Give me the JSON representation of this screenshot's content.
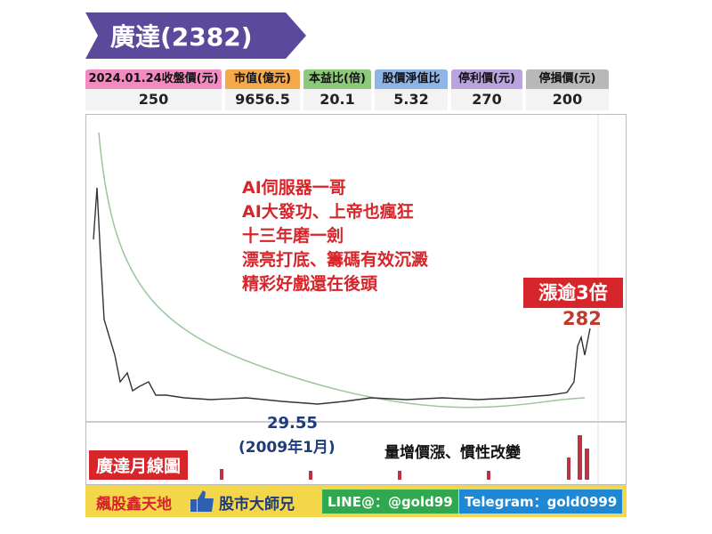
{
  "header": {
    "title": "廣達(2382)"
  },
  "stats": [
    {
      "label": "2024.01.24收盤價(元)",
      "value": "250"
    },
    {
      "label": "市值(億元)",
      "value": "9656.5"
    },
    {
      "label": "本益比(倍)",
      "value": "20.1"
    },
    {
      "label": "股價淨值比",
      "value": "5.32"
    },
    {
      "label": "停利價(元)",
      "value": "270"
    },
    {
      "label": "停損價(元)",
      "value": "200"
    }
  ],
  "annotations": {
    "headline": [
      "AI伺服器一哥",
      "AI大發功、上帝也瘋狂",
      "十三年磨一劍",
      "漂亮打底、籌碼有效沉澱",
      "精彩好戲還在後頭"
    ],
    "gain": "漲逾3倍",
    "high": "282",
    "low": "29.55",
    "low_date": "(2009年1月)",
    "volume_note": "量增價漲、慣性改變",
    "chart_label": "廣達月線圖"
  },
  "footer": {
    "brand": "飆股鑫天地",
    "sub": "股市大師兄",
    "line": "LINE@：@gold99",
    "telegram": "Telegram：gold0999"
  }
}
